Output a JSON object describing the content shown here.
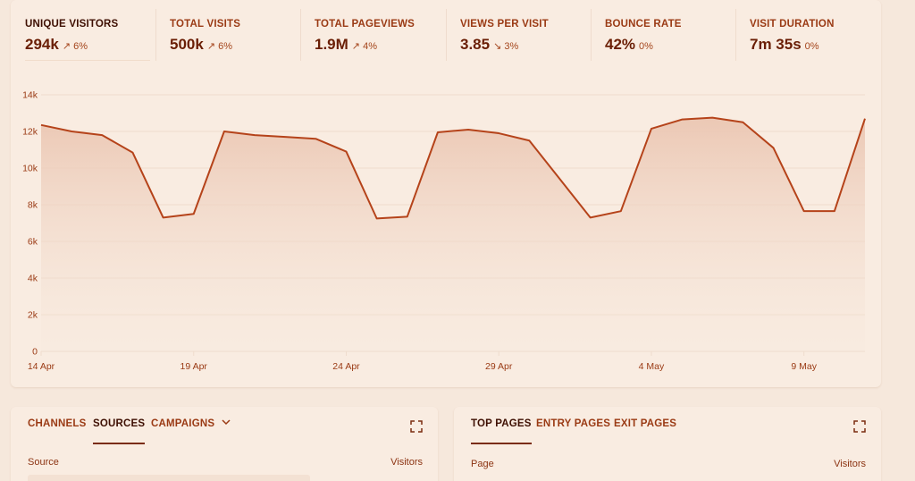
{
  "stats": [
    {
      "label": "UNIQUE VISITORS",
      "value": "294k",
      "change": "↗ 6%",
      "active": true
    },
    {
      "label": "TOTAL VISITS",
      "value": "500k",
      "change": "↗ 6%"
    },
    {
      "label": "TOTAL PAGEVIEWS",
      "value": "1.9M",
      "change": "↗ 4%"
    },
    {
      "label": "VIEWS PER VISIT",
      "value": "3.85",
      "change": "↘ 3%"
    },
    {
      "label": "BOUNCE RATE",
      "value": "42%",
      "change": "0%"
    },
    {
      "label": "VISIT DURATION",
      "value": "7m 35s",
      "change": "0%"
    }
  ],
  "colors": {
    "line": "#b5431a",
    "fill_top": "#ebc6b2",
    "fill_bottom": "#f6e8dc",
    "grid": "#efdccd",
    "tick": "#9a3a14"
  },
  "chart_data": {
    "type": "area",
    "xlabels": [
      "14 Apr",
      "19 Apr",
      "24 Apr",
      "29 Apr",
      "4 May",
      "9 May"
    ],
    "ytick_labels": [
      "0",
      "2k",
      "4k",
      "6k",
      "8k",
      "10k",
      "12k",
      "14k"
    ],
    "ylim": [
      0,
      14000
    ],
    "grid": true,
    "x": [
      "14 Apr",
      "15 Apr",
      "16 Apr",
      "17 Apr",
      "18 Apr",
      "19 Apr",
      "20 Apr",
      "21 Apr",
      "22 Apr",
      "23 Apr",
      "24 Apr",
      "25 Apr",
      "26 Apr",
      "27 Apr",
      "28 Apr",
      "29 Apr",
      "30 Apr",
      "1 May",
      "2 May",
      "3 May",
      "4 May",
      "5 May",
      "6 May",
      "7 May",
      "8 May",
      "9 May",
      "10 May",
      "11 May"
    ],
    "values": [
      12350,
      12000,
      11800,
      10850,
      7300,
      7500,
      12000,
      11800,
      11700,
      11600,
      10900,
      7250,
      7350,
      11950,
      12100,
      11900,
      11500,
      9400,
      7300,
      7650,
      12150,
      12650,
      12750,
      12500,
      11100,
      7650,
      7650,
      12700
    ]
  },
  "channels": {
    "tabs": [
      "CHANNELS",
      "SOURCES",
      "CAMPAIGNS"
    ],
    "active": 1,
    "chevron": "chevron-down-icon",
    "col_left": "Source",
    "col_right": "Visitors"
  },
  "pages": {
    "tabs": [
      "TOP PAGES",
      "ENTRY PAGES",
      "EXIT PAGES"
    ],
    "active": 0,
    "col_left": "Page",
    "col_right": "Visitors"
  }
}
